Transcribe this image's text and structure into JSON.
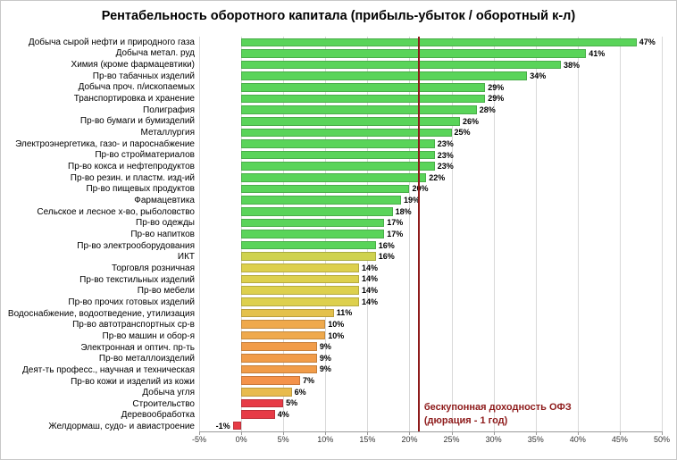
{
  "title": "Рентабельность оборотного капитала (прибыль-убыток / оборотный к-л)",
  "chart_data": {
    "type": "bar",
    "orientation": "horizontal",
    "title": "Рентабельность оборотного капитала (прибыль-убыток / оборотный к-л)",
    "xlim": [
      -5,
      50
    ],
    "xtick_values": [
      -5,
      0,
      5,
      10,
      15,
      20,
      25,
      30,
      35,
      40,
      45,
      50
    ],
    "xtick_labels": [
      "-5%",
      "0%",
      "5%",
      "10%",
      "15%",
      "20%",
      "25%",
      "30%",
      "35%",
      "40%",
      "45%",
      "50%"
    ],
    "grid_color": "#d9d9d9",
    "categories": [
      "Добыча сырой нефти и природного газа",
      "Добыча метал. руд",
      "Химия (кроме фармацевтики)",
      "Пр-во табачных изделий",
      "Добыча проч. п/ископаемых",
      "Транспортировка и хранение",
      "Полиграфия",
      "Пр-во бумаги и бумизделий",
      "Металлургия",
      "Электроэнергетика, газо- и пароснабжение",
      "Пр-во стройматериалов",
      "Пр-во кокса и нефтепродуктов",
      "Пр-во резин. и пластм. изд-ий",
      "Пр-во пищевых продуктов",
      "Фармацевтика",
      "Сельское и лесное х-во, рыболовство",
      "Пр-во одежды",
      "Пр-во напитков",
      "Пр-во электрооборудования",
      "ИКТ",
      "Торговля розничная",
      "Пр-во текстильных изделий",
      "Пр-во мебели",
      "Пр-во прочих готовых изделий",
      "Водоснабжение, водоотведение, утилизация",
      "Пр-во автотранспортных ср-в",
      "Пр-во машин и обор-я",
      "Электронная и оптич. пр-ть",
      "Пр-во металлоизделий",
      "Деят-ть професс., научная и техническая",
      "Пр-во кожи и изделий из кожи",
      "Добыча угля",
      "Строительство",
      "Деревообработка",
      "Желдормаш, судо- и авиастроение"
    ],
    "values": [
      47,
      41,
      38,
      34,
      29,
      29,
      28,
      26,
      25,
      23,
      23,
      23,
      22,
      20,
      19,
      18,
      17,
      17,
      16,
      16,
      14,
      14,
      14,
      14,
      11,
      10,
      10,
      9,
      9,
      9,
      7,
      6,
      5,
      4,
      -1
    ],
    "value_labels": [
      "47%",
      "41%",
      "38%",
      "34%",
      "29%",
      "29%",
      "28%",
      "26%",
      "25%",
      "23%",
      "23%",
      "23%",
      "22%",
      "20%",
      "19%",
      "18%",
      "17%",
      "17%",
      "16%",
      "16%",
      "14%",
      "14%",
      "14%",
      "14%",
      "11%",
      "10%",
      "10%",
      "9%",
      "9%",
      "9%",
      "7%",
      "6%",
      "5%",
      "4%",
      "-1%"
    ],
    "bar_colors": [
      "#5ad45a",
      "#5ad45a",
      "#5ad45a",
      "#5ad45a",
      "#5ad45a",
      "#5ad45a",
      "#5ad45a",
      "#5ad45a",
      "#5ad45a",
      "#5ad45a",
      "#5ad45a",
      "#5ad45a",
      "#5ad45a",
      "#5ad45a",
      "#5ad45a",
      "#5ad45a",
      "#5ad45a",
      "#5ad45a",
      "#5ad45a",
      "#cfd24f",
      "#ddd04d",
      "#ddd04d",
      "#ddd04d",
      "#ddd04d",
      "#e4c14c",
      "#efa94c",
      "#efa94c",
      "#f19c49",
      "#f19c49",
      "#f19c49",
      "#f4924a",
      "#e8bb4d",
      "#e73b46",
      "#e73b46",
      "#e73b46"
    ],
    "reference_line": {
      "value": 21,
      "color": "#8e1b1b",
      "label": [
        "бескупонная доходность ОФЗ",
        "(дюрация - 1 год)"
      ]
    }
  }
}
